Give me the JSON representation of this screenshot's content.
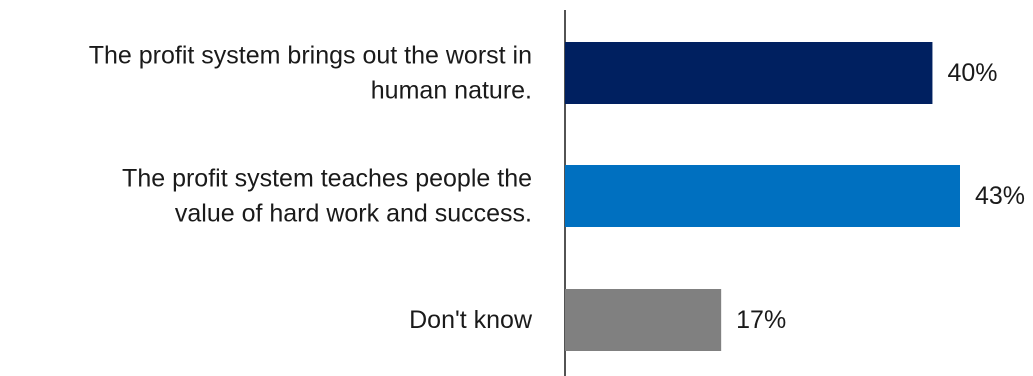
{
  "chart_data": {
    "type": "bar",
    "orientation": "horizontal",
    "title": "",
    "xlabel": "",
    "ylabel": "",
    "categories": [
      [
        "The profit system brings out the worst in",
        "human nature."
      ],
      [
        "The profit system teaches people the",
        "value of hard work and success."
      ],
      [
        "Don't know"
      ]
    ],
    "values": [
      40,
      43,
      17
    ],
    "value_labels": [
      "40%",
      "43%",
      "17%"
    ],
    "colors": [
      "#002060",
      "#0070c0",
      "#808080"
    ],
    "xlim": [
      0,
      43
    ],
    "grid": false,
    "legend": "none"
  }
}
